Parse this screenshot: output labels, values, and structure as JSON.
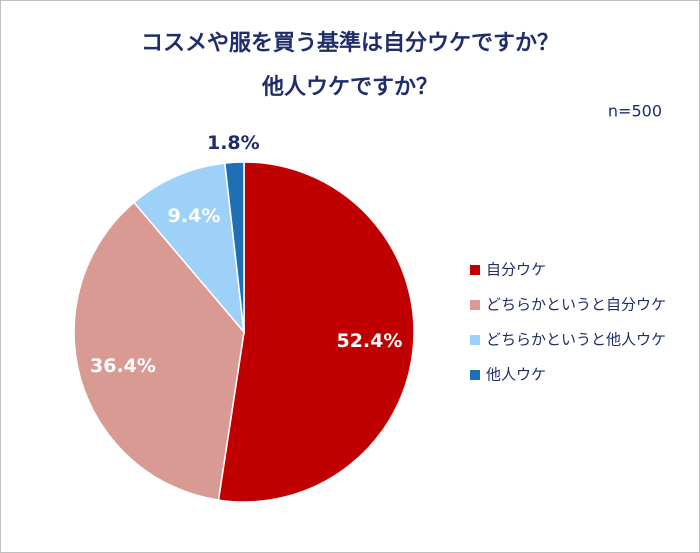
{
  "chart_data": {
    "type": "pie",
    "title": [
      "コスメや服を買う基準は自分ウケですか？",
      "他人ウケですか？"
    ],
    "subtitle": "n=500",
    "categories": [
      "自分ウケ",
      "どちらかというと自分ウケ",
      "どちらかというと他人ウケ",
      "他人ウケ"
    ],
    "values": [
      52.4,
      36.4,
      9.4,
      1.8
    ],
    "value_labels": [
      "52.4%",
      "36.4%",
      "9.4%",
      "1.8%"
    ],
    "colors": [
      "#c00000",
      "#d99a94",
      "#9dd1f7",
      "#1f6fb5"
    ],
    "legend": "right"
  }
}
